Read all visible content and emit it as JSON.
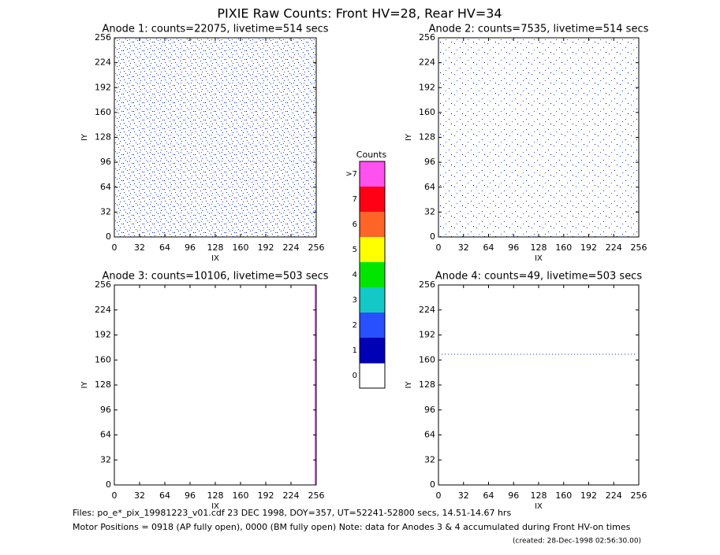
{
  "title": "PIXIE Raw Counts:  Front HV=28, Rear HV=34",
  "chart_data": [
    {
      "type": "heatmap",
      "title": "Anode 1: counts=22075, livetime=514 secs",
      "xlabel": "IX",
      "ylabel": "IY",
      "xlim": [
        0,
        256
      ],
      "ylim": [
        0,
        256
      ],
      "xticks": [
        0,
        32,
        64,
        96,
        128,
        160,
        192,
        224,
        256
      ],
      "yticks": [
        0,
        32,
        64,
        96,
        128,
        160,
        192,
        224,
        256
      ]
    },
    {
      "type": "heatmap",
      "title": "Anode 2: counts=7535, livetime=514 secs",
      "xlabel": "IX",
      "ylabel": "IY",
      "xlim": [
        0,
        256
      ],
      "ylim": [
        0,
        256
      ],
      "xticks": [
        0,
        32,
        64,
        96,
        128,
        160,
        192,
        224,
        256
      ],
      "yticks": [
        0,
        32,
        64,
        96,
        128,
        160,
        192,
        224,
        256
      ]
    },
    {
      "type": "heatmap",
      "title": "Anode 3: counts=10106, livetime=503 secs",
      "xlabel": "IX",
      "ylabel": "IY",
      "xlim": [
        0,
        256
      ],
      "ylim": [
        0,
        256
      ],
      "xticks": [
        0,
        32,
        64,
        96,
        128,
        160,
        192,
        224,
        256
      ],
      "yticks": [
        0,
        32,
        64,
        96,
        128,
        160,
        192,
        224,
        256
      ]
    },
    {
      "type": "heatmap",
      "title": "Anode 4: counts=49, livetime=503 secs",
      "xlabel": "IX",
      "ylabel": "IY",
      "xlim": [
        0,
        256
      ],
      "ylim": [
        0,
        256
      ],
      "xticks": [
        0,
        32,
        64,
        96,
        128,
        160,
        192,
        224,
        256
      ],
      "yticks": [
        0,
        32,
        64,
        96,
        128,
        160,
        192,
        224,
        256
      ]
    }
  ],
  "colorbar": {
    "title": "Counts",
    "labels": [
      "0",
      "1",
      "2",
      "3",
      "4",
      "5",
      "6",
      "7",
      ">7"
    ],
    "colors": [
      "#ffffff",
      "#0000b4",
      "#2850ff",
      "#14c8c8",
      "#00e600",
      "#ffff00",
      "#ff6428",
      "#ff0014",
      "#ff50f0"
    ]
  },
  "footer": {
    "files": "Files: po_e*_pix_19981223_v01.cdf   23 DEC 1998, DOY=357, UT=52241-52800 secs, 14.51-14.67 hrs",
    "motor": "Motor Positions = 0918 (AP fully open), 0000 (BM fully open)    Note: data for Anodes 3 & 4 accumulated during Front HV-on times",
    "created": "(created: 28-Dec-1998 02:56:30.00)"
  }
}
